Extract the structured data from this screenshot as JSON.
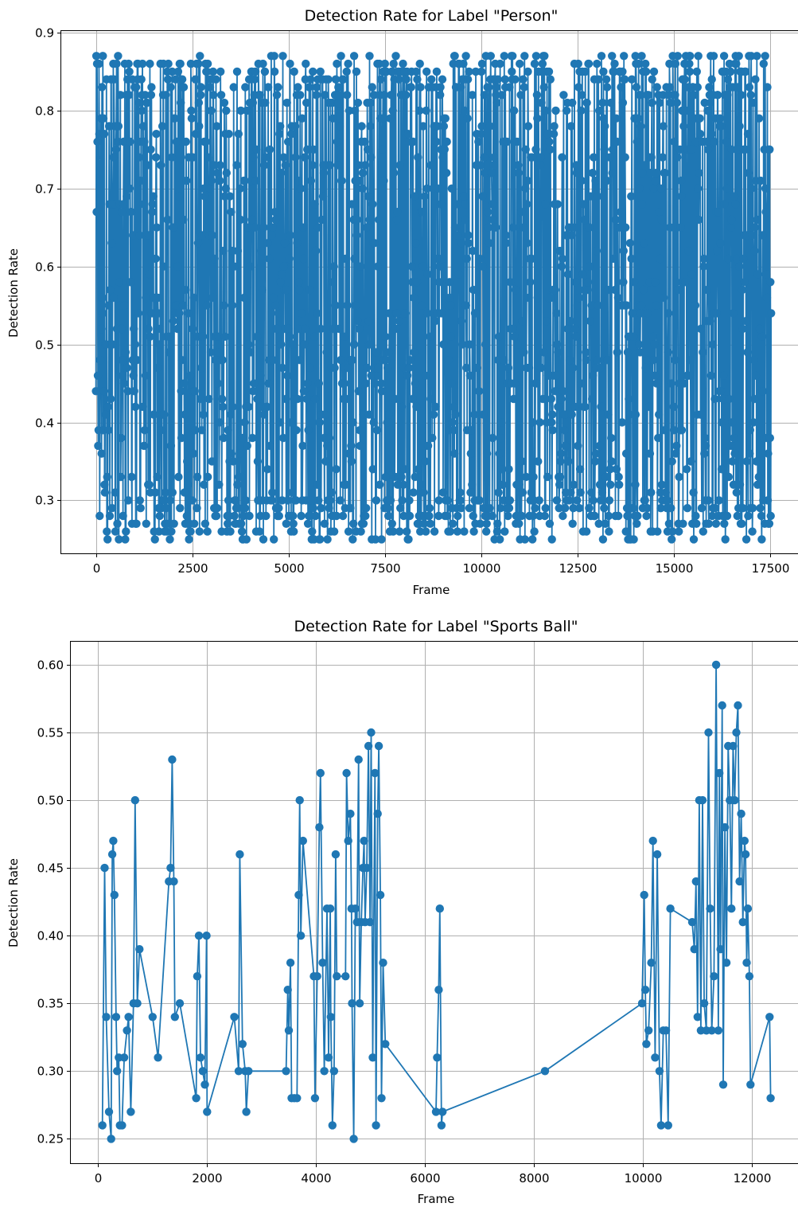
{
  "colors": {
    "series": "#1f77b4",
    "grid": "#b0b0b0",
    "axis": "#000000"
  },
  "chart_data": [
    {
      "type": "line",
      "title": "Detection Rate for Label \"Person\"",
      "xlabel": "Frame",
      "ylabel": "Detection Rate",
      "xlim": [
        -900,
        18300
      ],
      "ylim": [
        0.232,
        0.902
      ],
      "xticks": [
        0,
        2500,
        5000,
        7500,
        10000,
        12500,
        15000,
        17500
      ],
      "xtick_labels": [
        "0",
        "2500",
        "5000",
        "7500",
        "10000",
        "12500",
        "15000",
        "17500"
      ],
      "yticks": [
        0.3,
        0.4,
        0.5,
        0.6,
        0.7,
        0.8,
        0.9
      ],
      "ytick_labels": [
        "0.3",
        "0.4",
        "0.5",
        "0.6",
        "0.7",
        "0.8",
        "0.9"
      ],
      "grid": true,
      "marker": "circle",
      "dense_series": {
        "name": "",
        "x_range": [
          0,
          17520
        ],
        "y_min": 0.25,
        "y_max": 0.87,
        "note_points": [
          {
            "x": 180,
            "y": 0.87
          },
          {
            "x": 450,
            "y": 0.86
          },
          {
            "x": 1400,
            "y": 0.86
          },
          {
            "x": 1750,
            "y": 0.86
          },
          {
            "x": 2900,
            "y": 0.86
          },
          {
            "x": 6700,
            "y": 0.87
          },
          {
            "x": 7100,
            "y": 0.87
          },
          {
            "x": 9300,
            "y": 0.87
          },
          {
            "x": 9600,
            "y": 0.87
          },
          {
            "x": 13700,
            "y": 0.87
          },
          {
            "x": 14000,
            "y": 0.87
          },
          {
            "x": 15400,
            "y": 0.87
          },
          {
            "x": 16300,
            "y": 0.87
          },
          {
            "x": 16600,
            "y": 0.87
          }
        ]
      }
    },
    {
      "type": "line",
      "title": "Detection Rate for Label \"Sports Ball\"",
      "xlabel": "Frame",
      "ylabel": "Detection Rate",
      "xlim": [
        -500,
        12900
      ],
      "ylim": [
        0.232,
        0.617
      ],
      "xticks": [
        0,
        2000,
        4000,
        6000,
        8000,
        10000,
        12000
      ],
      "xtick_labels": [
        "0",
        "2000",
        "4000",
        "6000",
        "8000",
        "10000",
        "12000"
      ],
      "yticks": [
        0.25,
        0.3,
        0.35,
        0.4,
        0.45,
        0.5,
        0.55,
        0.6
      ],
      "ytick_labels": [
        "0.25",
        "0.30",
        "0.35",
        "0.40",
        "0.45",
        "0.50",
        "0.55",
        "0.60"
      ],
      "grid": true,
      "marker": "circle",
      "series": [
        {
          "name": "",
          "points": [
            [
              80,
              0.26
            ],
            [
              120,
              0.45
            ],
            [
              150,
              0.34
            ],
            [
              200,
              0.27
            ],
            [
              240,
              0.25
            ],
            [
              260,
              0.46
            ],
            [
              280,
              0.47
            ],
            [
              300,
              0.43
            ],
            [
              330,
              0.34
            ],
            [
              350,
              0.3
            ],
            [
              380,
              0.31
            ],
            [
              400,
              0.26
            ],
            [
              440,
              0.26
            ],
            [
              480,
              0.31
            ],
            [
              530,
              0.33
            ],
            [
              560,
              0.34
            ],
            [
              600,
              0.27
            ],
            [
              650,
              0.35
            ],
            [
              680,
              0.5
            ],
            [
              720,
              0.35
            ],
            [
              760,
              0.39
            ],
            [
              1000,
              0.34
            ],
            [
              1100,
              0.31
            ],
            [
              1300,
              0.44
            ],
            [
              1330,
              0.45
            ],
            [
              1360,
              0.53
            ],
            [
              1390,
              0.44
            ],
            [
              1410,
              0.34
            ],
            [
              1500,
              0.35
            ],
            [
              1800,
              0.28
            ],
            [
              1820,
              0.37
            ],
            [
              1850,
              0.4
            ],
            [
              1880,
              0.31
            ],
            [
              1920,
              0.3
            ],
            [
              1960,
              0.29
            ],
            [
              1990,
              0.4
            ],
            [
              2000,
              0.27
            ],
            [
              2500,
              0.34
            ],
            [
              2580,
              0.3
            ],
            [
              2600,
              0.46
            ],
            [
              2650,
              0.32
            ],
            [
              2700,
              0.3
            ],
            [
              2720,
              0.27
            ],
            [
              2760,
              0.3
            ],
            [
              3450,
              0.3
            ],
            [
              3480,
              0.36
            ],
            [
              3500,
              0.33
            ],
            [
              3530,
              0.38
            ],
            [
              3550,
              0.28
            ],
            [
              3600,
              0.28
            ],
            [
              3650,
              0.28
            ],
            [
              3680,
              0.43
            ],
            [
              3700,
              0.5
            ],
            [
              3720,
              0.4
            ],
            [
              3760,
              0.47
            ],
            [
              3960,
              0.37
            ],
            [
              3980,
              0.28
            ],
            [
              4020,
              0.37
            ],
            [
              4060,
              0.48
            ],
            [
              4080,
              0.52
            ],
            [
              4120,
              0.38
            ],
            [
              4150,
              0.3
            ],
            [
              4200,
              0.42
            ],
            [
              4230,
              0.31
            ],
            [
              4260,
              0.42
            ],
            [
              4270,
              0.34
            ],
            [
              4300,
              0.26
            ],
            [
              4330,
              0.3
            ],
            [
              4360,
              0.46
            ],
            [
              4380,
              0.37
            ],
            [
              4540,
              0.37
            ],
            [
              4560,
              0.52
            ],
            [
              4590,
              0.47
            ],
            [
              4630,
              0.49
            ],
            [
              4650,
              0.42
            ],
            [
              4660,
              0.35
            ],
            [
              4690,
              0.25
            ],
            [
              4720,
              0.42
            ],
            [
              4750,
              0.41
            ],
            [
              4780,
              0.53
            ],
            [
              4800,
              0.35
            ],
            [
              4830,
              0.41
            ],
            [
              4860,
              0.45
            ],
            [
              4880,
              0.47
            ],
            [
              4900,
              0.41
            ],
            [
              4930,
              0.45
            ],
            [
              4960,
              0.54
            ],
            [
              4990,
              0.41
            ],
            [
              5010,
              0.55
            ],
            [
              5040,
              0.31
            ],
            [
              5080,
              0.52
            ],
            [
              5100,
              0.26
            ],
            [
              5130,
              0.49
            ],
            [
              5150,
              0.54
            ],
            [
              5180,
              0.43
            ],
            [
              5200,
              0.28
            ],
            [
              5230,
              0.38
            ],
            [
              5270,
              0.32
            ],
            [
              6200,
              0.27
            ],
            [
              6220,
              0.31
            ],
            [
              6250,
              0.36
            ],
            [
              6270,
              0.42
            ],
            [
              6300,
              0.26
            ],
            [
              6320,
              0.27
            ],
            [
              8200,
              0.3
            ],
            [
              9980,
              0.35
            ],
            [
              10020,
              0.43
            ],
            [
              10040,
              0.36
            ],
            [
              10060,
              0.32
            ],
            [
              10100,
              0.33
            ],
            [
              10150,
              0.38
            ],
            [
              10180,
              0.47
            ],
            [
              10220,
              0.31
            ],
            [
              10260,
              0.46
            ],
            [
              10300,
              0.3
            ],
            [
              10330,
              0.26
            ],
            [
              10370,
              0.33
            ],
            [
              10420,
              0.33
            ],
            [
              10460,
              0.26
            ],
            [
              10500,
              0.42
            ],
            [
              10900,
              0.41
            ],
            [
              10940,
              0.39
            ],
            [
              10970,
              0.44
            ],
            [
              11000,
              0.34
            ],
            [
              11030,
              0.5
            ],
            [
              11060,
              0.33
            ],
            [
              11090,
              0.5
            ],
            [
              11120,
              0.35
            ],
            [
              11160,
              0.33
            ],
            [
              11200,
              0.55
            ],
            [
              11230,
              0.42
            ],
            [
              11260,
              0.33
            ],
            [
              11300,
              0.37
            ],
            [
              11340,
              0.6
            ],
            [
              11380,
              0.33
            ],
            [
              11400,
              0.52
            ],
            [
              11420,
              0.39
            ],
            [
              11450,
              0.57
            ],
            [
              11470,
              0.29
            ],
            [
              11500,
              0.48
            ],
            [
              11530,
              0.38
            ],
            [
              11560,
              0.54
            ],
            [
              11590,
              0.5
            ],
            [
              11620,
              0.42
            ],
            [
              11650,
              0.54
            ],
            [
              11680,
              0.5
            ],
            [
              11710,
              0.55
            ],
            [
              11740,
              0.57
            ],
            [
              11770,
              0.44
            ],
            [
              11800,
              0.49
            ],
            [
              11830,
              0.41
            ],
            [
              11860,
              0.47
            ],
            [
              11880,
              0.46
            ],
            [
              11900,
              0.38
            ],
            [
              11920,
              0.42
            ],
            [
              11950,
              0.37
            ],
            [
              11970,
              0.29
            ],
            [
              12320,
              0.34
            ],
            [
              12340,
              0.28
            ]
          ]
        }
      ]
    }
  ]
}
